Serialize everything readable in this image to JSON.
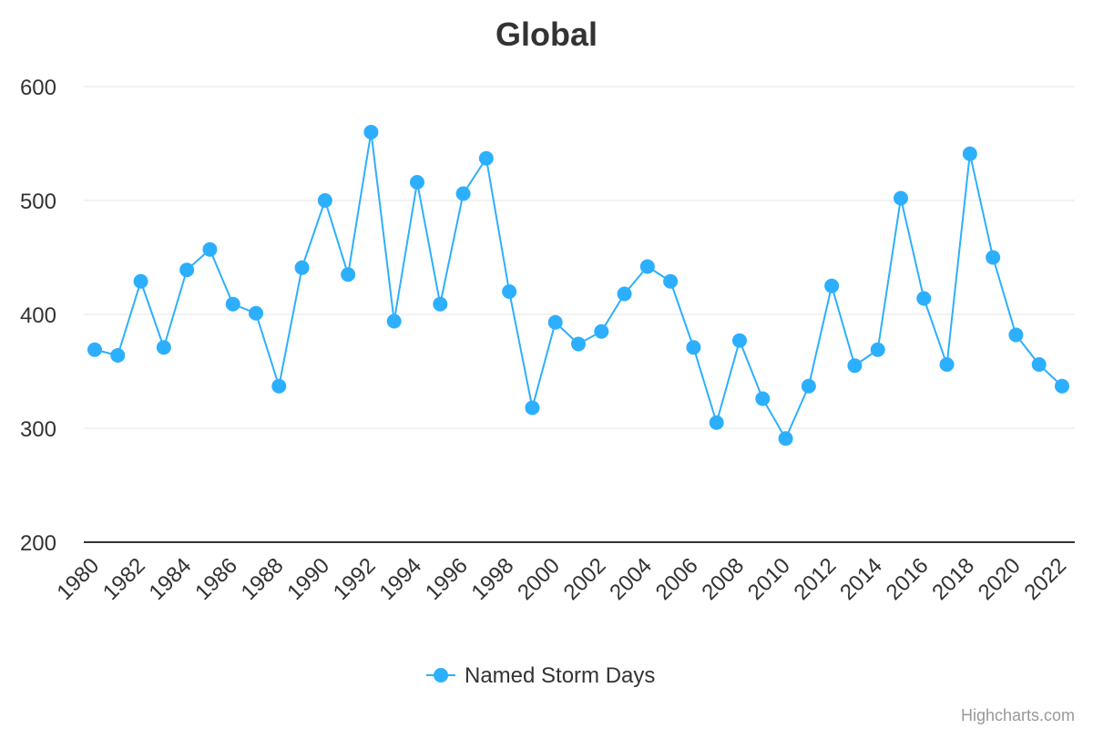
{
  "chart_data": {
    "type": "line",
    "title": "Global",
    "xlabel": "",
    "ylabel": "",
    "ylim": [
      200,
      600
    ],
    "yticks": [
      "200",
      "300",
      "400",
      "500",
      "600"
    ],
    "x": [
      1980,
      1981,
      1982,
      1983,
      1984,
      1985,
      1986,
      1987,
      1988,
      1989,
      1990,
      1991,
      1992,
      1993,
      1994,
      1995,
      1996,
      1997,
      1998,
      1999,
      2000,
      2001,
      2002,
      2003,
      2004,
      2005,
      2006,
      2007,
      2008,
      2009,
      2010,
      2011,
      2012,
      2013,
      2014,
      2015,
      2016,
      2017,
      2018,
      2019,
      2020,
      2021,
      2022
    ],
    "xticks": [
      "1980",
      "1982",
      "1984",
      "1986",
      "1988",
      "1990",
      "1992",
      "1994",
      "1996",
      "1998",
      "2000",
      "2002",
      "2004",
      "2006",
      "2008",
      "2010",
      "2012",
      "2014",
      "2016",
      "2018",
      "2020",
      "2022"
    ],
    "grid": true,
    "legend_position": "bottom-center",
    "series": [
      {
        "name": "Named Storm Days",
        "color": "#2caffe",
        "values": [
          369,
          364,
          429,
          371,
          439,
          457,
          409,
          401,
          337,
          441,
          500,
          435,
          560,
          394,
          516,
          409,
          506,
          537,
          420,
          318,
          393,
          374,
          385,
          418,
          442,
          429,
          371,
          305,
          377,
          326,
          291,
          337,
          425,
          355,
          369,
          502,
          414,
          356,
          541,
          450,
          382,
          356,
          337
        ]
      }
    ]
  },
  "credits": "Highcharts.com"
}
